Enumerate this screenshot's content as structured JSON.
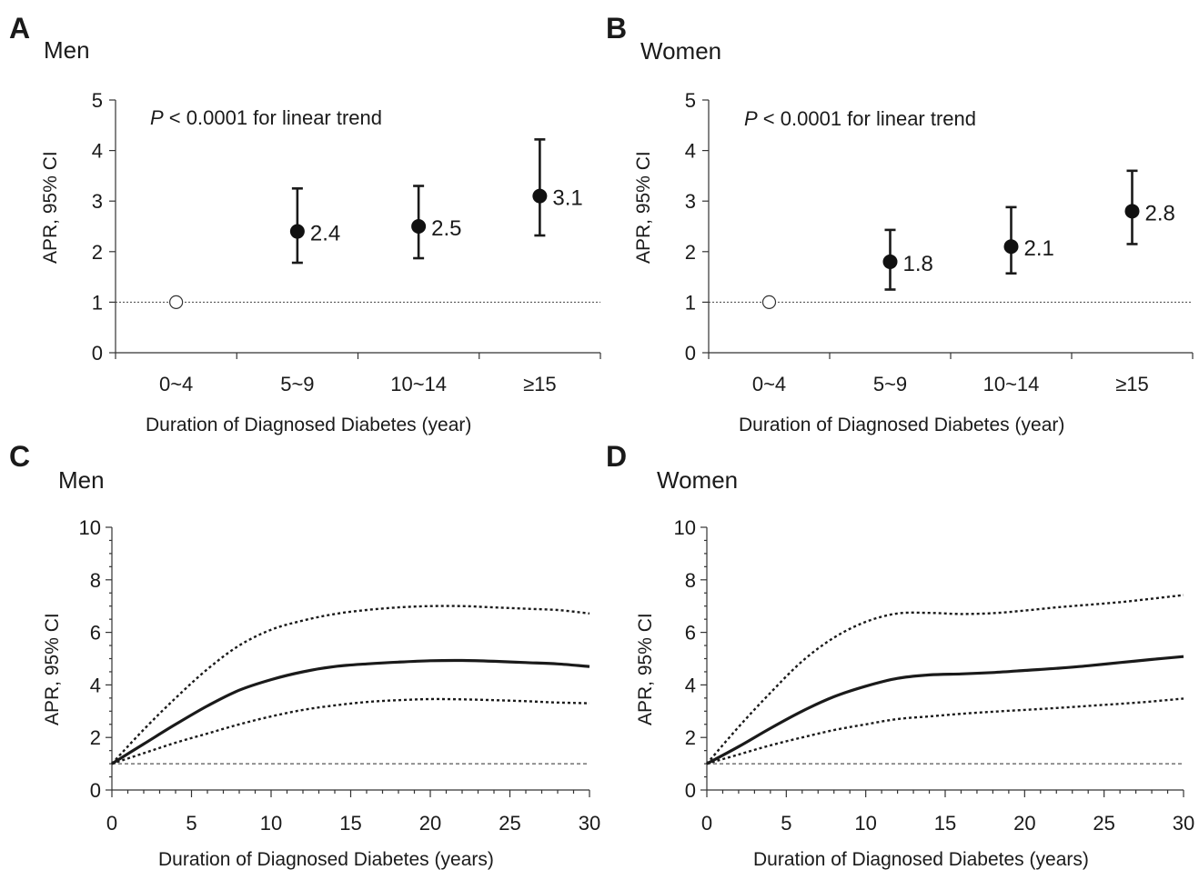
{
  "chart_data": [
    {
      "panel": "A",
      "title": "Men",
      "type": "scatter",
      "categories": [
        "0~4",
        "5~9",
        "10~14",
        "≥15"
      ],
      "xlabel": "Duration of Diagnosed Diabetes (year)",
      "ylabel": "APR, 95% CI",
      "ylim": [
        0,
        5
      ],
      "yticks": [
        0,
        1,
        2,
        3,
        4,
        5
      ],
      "reference_line": 1,
      "annotation": {
        "italic": "P",
        "text": " < 0.0001 for linear trend"
      },
      "points": [
        {
          "category": "0~4",
          "value": 1,
          "reference": true
        },
        {
          "category": "5~9",
          "value": 2.4,
          "lower": 1.78,
          "upper": 3.25,
          "label": "2.4"
        },
        {
          "category": "10~14",
          "value": 2.5,
          "lower": 1.87,
          "upper": 3.3,
          "label": "2.5"
        },
        {
          "category": "≥15",
          "value": 3.1,
          "lower": 2.32,
          "upper": 4.22,
          "label": "3.1"
        }
      ]
    },
    {
      "panel": "B",
      "title": "Women",
      "type": "scatter",
      "categories": [
        "0~4",
        "5~9",
        "10~14",
        "≥15"
      ],
      "xlabel": "Duration of Diagnosed Diabetes (year)",
      "ylabel": "APR, 95% CI",
      "ylim": [
        0,
        5
      ],
      "yticks": [
        0,
        1,
        2,
        3,
        4,
        5
      ],
      "reference_line": 1,
      "annotation": {
        "italic": "P",
        "text": " < 0.0001 for linear trend"
      },
      "points": [
        {
          "category": "0~4",
          "value": 1,
          "reference": true
        },
        {
          "category": "5~9",
          "value": 1.8,
          "lower": 1.25,
          "upper": 2.43,
          "label": "1.8"
        },
        {
          "category": "10~14",
          "value": 2.1,
          "lower": 1.57,
          "upper": 2.88,
          "label": "2.1"
        },
        {
          "category": "≥15",
          "value": 2.8,
          "lower": 2.15,
          "upper": 3.6,
          "label": "2.8"
        }
      ]
    },
    {
      "panel": "C",
      "title": "Men",
      "type": "line",
      "xlabel": "Duration of Diagnosed Diabetes (years)",
      "ylabel": "APR, 95% CI",
      "xlim": [
        0,
        30
      ],
      "ylim": [
        0,
        10
      ],
      "xticks": [
        0,
        5,
        10,
        15,
        20,
        25,
        30
      ],
      "yticks": [
        0,
        2,
        4,
        6,
        8,
        10
      ],
      "reference_line": 1,
      "x": [
        0,
        2,
        4,
        6,
        8,
        10,
        12,
        14,
        16,
        18,
        20,
        22,
        24,
        26,
        28,
        30
      ],
      "estimate": [
        1,
        1.75,
        2.5,
        3.2,
        3.8,
        4.2,
        4.5,
        4.7,
        4.8,
        4.87,
        4.92,
        4.93,
        4.9,
        4.85,
        4.8,
        4.7
      ],
      "lower": [
        1,
        1.4,
        1.8,
        2.15,
        2.5,
        2.8,
        3.05,
        3.22,
        3.35,
        3.42,
        3.46,
        3.45,
        3.42,
        3.38,
        3.33,
        3.3
      ],
      "upper": [
        1,
        2.3,
        3.5,
        4.6,
        5.5,
        6.1,
        6.45,
        6.7,
        6.85,
        6.95,
        7.0,
        7.0,
        6.95,
        6.9,
        6.85,
        6.72
      ]
    },
    {
      "panel": "D",
      "title": "Women",
      "type": "line",
      "xlabel": "Duration of Diagnosed Diabetes (years)",
      "ylabel": "APR, 95% CI",
      "xlim": [
        0,
        30
      ],
      "ylim": [
        0,
        10
      ],
      "xticks": [
        0,
        5,
        10,
        15,
        20,
        25,
        30
      ],
      "yticks": [
        0,
        2,
        4,
        6,
        8,
        10
      ],
      "reference_line": 1,
      "x": [
        0,
        2,
        4,
        6,
        8,
        10,
        12,
        14,
        16,
        18,
        20,
        22,
        24,
        26,
        28,
        30
      ],
      "estimate": [
        1,
        1.65,
        2.35,
        3.0,
        3.55,
        3.95,
        4.25,
        4.38,
        4.42,
        4.47,
        4.55,
        4.63,
        4.73,
        4.85,
        4.97,
        5.08
      ],
      "lower": [
        1,
        1.35,
        1.7,
        2.0,
        2.28,
        2.5,
        2.7,
        2.8,
        2.9,
        2.98,
        3.05,
        3.12,
        3.2,
        3.28,
        3.37,
        3.48
      ],
      "upper": [
        1,
        2.4,
        3.7,
        4.9,
        5.8,
        6.4,
        6.72,
        6.74,
        6.7,
        6.73,
        6.83,
        6.95,
        7.05,
        7.15,
        7.28,
        7.42
      ]
    }
  ]
}
